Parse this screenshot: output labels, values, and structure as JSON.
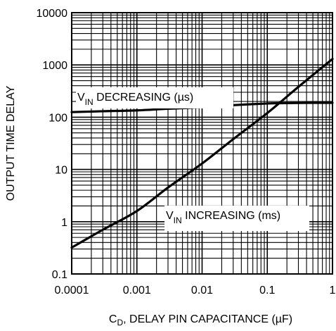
{
  "chart_data": {
    "type": "line",
    "xscale": "log",
    "yscale": "log",
    "xlim": [
      0.0001,
      1
    ],
    "ylim": [
      0.1,
      10000
    ],
    "grid": true,
    "x_ticks": [
      "0.0001",
      "0.001",
      "0.01",
      "0.1",
      "1"
    ],
    "y_ticks": [
      "0.1",
      "1",
      "10",
      "100",
      "1000",
      "10000"
    ],
    "xlabel": {
      "main": "C",
      "sub": "D",
      "rest": ", DELAY PIN CAPACITANCE (µF)"
    },
    "ylabel": "OUTPUT TIME DELAY",
    "series": [
      {
        "name": {
          "main": "V",
          "sub": "IN",
          "rest": " DECREASING (µs)"
        },
        "color": "#000000",
        "x": [
          0.0001,
          0.0003,
          0.001,
          0.003,
          0.01,
          0.03,
          0.1,
          0.2,
          0.5,
          1
        ],
        "y": [
          125,
          130,
          135,
          145,
          155,
          170,
          183,
          186,
          188,
          188
        ]
      },
      {
        "name": {
          "main": "V",
          "sub": "IN",
          "rest": " INCREASING (ms)"
        },
        "color": "#000000",
        "x": [
          0.0001,
          0.0003,
          0.001,
          0.003,
          0.01,
          0.03,
          0.1,
          0.3,
          1
        ],
        "y": [
          0.32,
          0.7,
          1.6,
          4.5,
          13,
          38,
          120,
          380,
          1300
        ]
      }
    ]
  }
}
